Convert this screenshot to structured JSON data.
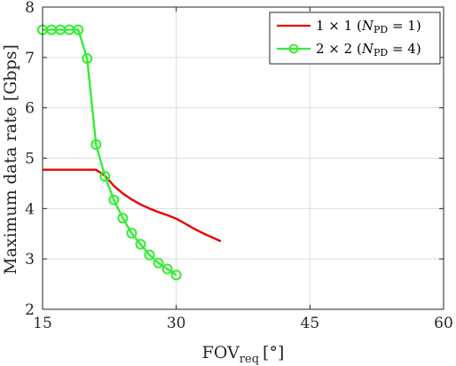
{
  "chart_data": {
    "type": "line",
    "xlabel": "FOV",
    "xlabel_sub": "req",
    "xlabel_unit": "[°]",
    "ylabel": "Maximum data rate [Gbps]",
    "xlim": [
      15,
      60
    ],
    "ylim": [
      2,
      8
    ],
    "x_ticks": [
      15,
      30,
      45,
      60
    ],
    "y_ticks": [
      2,
      3,
      4,
      5,
      6,
      7,
      8
    ],
    "grid": true,
    "legend_position": "top-right",
    "series": [
      {
        "name_main": "1 × 1 (",
        "name_var": "N",
        "name_sub": "PD",
        "name_tail": " = 1)",
        "color": "#e60000",
        "marker": "none",
        "x": [
          15,
          16,
          17,
          18,
          19,
          20,
          21,
          22,
          23,
          24,
          25,
          26,
          27,
          28,
          29,
          30,
          31,
          32,
          33,
          34,
          35
        ],
        "y": [
          4.77,
          4.77,
          4.77,
          4.77,
          4.77,
          4.77,
          4.77,
          4.65,
          4.45,
          4.3,
          4.18,
          4.08,
          4.0,
          3.93,
          3.87,
          3.8,
          3.7,
          3.6,
          3.51,
          3.43,
          3.35
        ]
      },
      {
        "name_main": "2 × 2 (",
        "name_var": "N",
        "name_sub": "PD",
        "name_tail": " = 4)",
        "color": "#33ee33",
        "marker": "circle",
        "x": [
          15,
          16,
          17,
          18,
          19,
          20,
          21,
          22,
          23,
          24,
          25,
          26,
          27,
          28,
          29,
          30
        ],
        "y": [
          7.55,
          7.55,
          7.55,
          7.55,
          7.55,
          6.98,
          5.27,
          4.64,
          4.17,
          3.81,
          3.51,
          3.29,
          3.08,
          2.92,
          2.8,
          2.68
        ]
      }
    ]
  }
}
